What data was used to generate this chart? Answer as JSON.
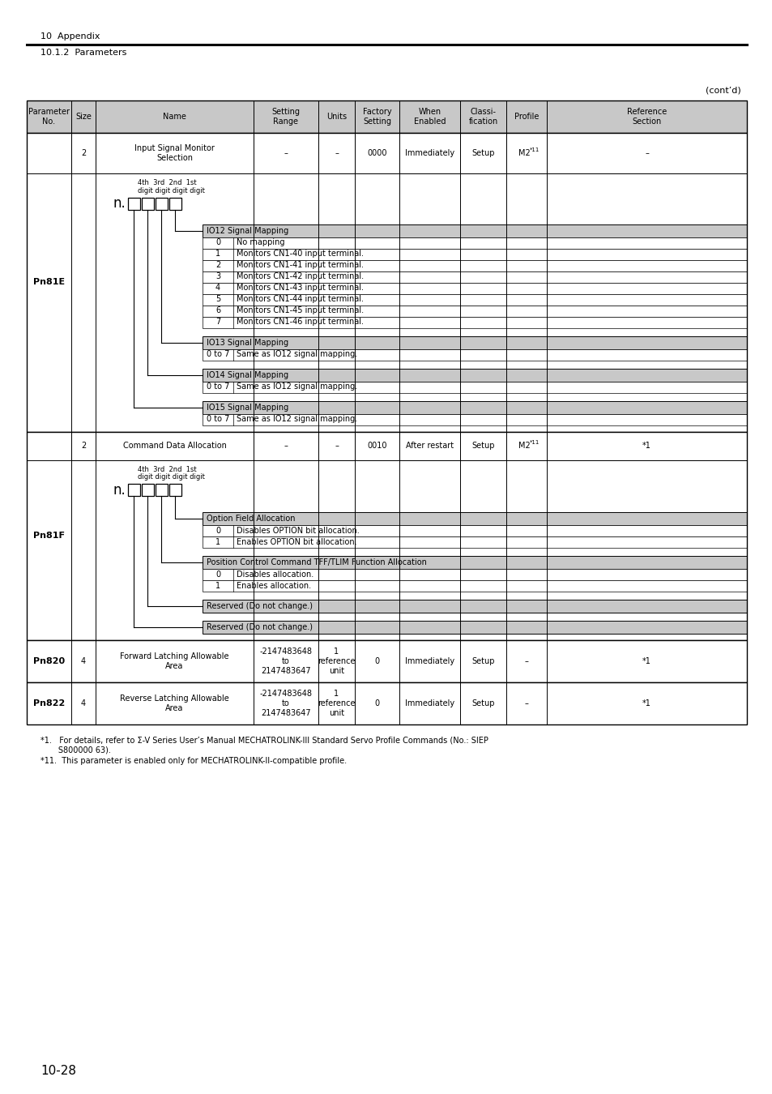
{
  "page_header_main": "10  Appendix",
  "page_header_sub": "10.1.2  Parameters",
  "contd": "(cont’d)",
  "page_number": "10-28",
  "table_headers": [
    "Parameter\nNo.",
    "Size",
    "Name",
    "Setting\nRange",
    "Units",
    "Factory\nSetting",
    "When\nEnabled",
    "Classi-\nfication",
    "Profile",
    "Reference\nSection"
  ],
  "header_bg": "#c8c8c8",
  "section1_param": "Pn81E",
  "section1_size": "2",
  "section1_name": "Input Signal Monitor\nSelection",
  "section1_range": "–",
  "section1_units": "–",
  "section1_factory": "0000",
  "section1_enabled": "Immediately",
  "section1_classif": "Setup",
  "section1_ref": "–",
  "section2_param": "Pn81F",
  "section2_size": "2",
  "section2_name": "Command Data Allocation",
  "section2_range": "–",
  "section2_units": "–",
  "section2_factory": "0010",
  "section2_enabled": "After restart",
  "section2_classif": "Setup",
  "section2_ref": "*1",
  "section3_param": "Pn820",
  "section3_size": "4",
  "section3_name": "Forward Latching Allowable\nArea",
  "section3_range": "-2147483648\nto\n2147483647",
  "section3_units": "1\nreference\nunit",
  "section3_factory": "0",
  "section3_enabled": "Immediately",
  "section3_classif": "Setup",
  "section3_profile": "–",
  "section3_ref": "*1",
  "section4_param": "Pn822",
  "section4_size": "4",
  "section4_name": "Reverse Latching Allowable\nArea",
  "section4_range": "-2147483648\nto\n2147483647",
  "section4_units": "1\nreference\nunit",
  "section4_factory": "0",
  "section4_enabled": "Immediately",
  "section4_classif": "Setup",
  "section4_profile": "–",
  "section4_ref": "*1",
  "footnote1a": "*1.   For details, refer to Σ-V Series User’s Manual MECHATROLINK-III Standard Servo Profile Commands (No.: SIEP",
  "footnote1b": "       S800000 63).",
  "footnote11": "*11.  This parameter is enabled only for MECHATROLINK-II-compatible profile.",
  "io12_rows": [
    [
      "0",
      "No mapping"
    ],
    [
      "1",
      "Monitors CN1-40 input terminal."
    ],
    [
      "2",
      "Monitors CN1-41 input terminal."
    ],
    [
      "3",
      "Monitors CN1-42 input terminal."
    ],
    [
      "4",
      "Monitors CN1-43 input terminal."
    ],
    [
      "5",
      "Monitors CN1-44 input terminal."
    ],
    [
      "6",
      "Monitors CN1-45 input terminal."
    ],
    [
      "7",
      "Monitors CN1-46 input terminal."
    ]
  ],
  "option_rows": [
    [
      "0",
      "Disables OPTION bit allocation."
    ],
    [
      "1",
      "Enables OPTION bit allocation."
    ]
  ],
  "pos_ctrl_rows": [
    [
      "0",
      "Disables allocation."
    ],
    [
      "1",
      "Enables allocation."
    ]
  ],
  "reserved1_label": "Reserved (Do not change.)",
  "reserved2_label": "Reserved (Do not change.)"
}
